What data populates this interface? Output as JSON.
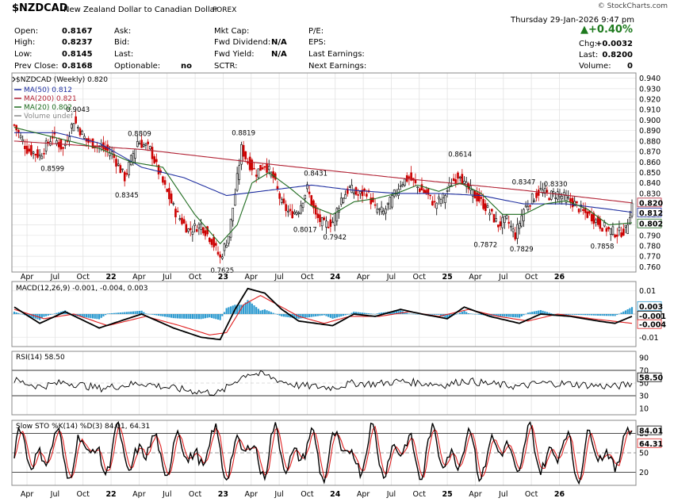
{
  "header": {
    "symbol": "$NZDCAD",
    "description": "New Zealand Dollar to Canadian Dollar",
    "exchange": "FOREX",
    "copyright": "© StockCharts.com",
    "date": "Thursday  29-Jan-2026  9:47 pm",
    "change_pct": "+0.40%",
    "chg_label": "Chg:",
    "chg_value": "+0.0032",
    "last_label": "Last:",
    "last_value": "0.8200",
    "volume_label": "Volume:",
    "volume_value": "0",
    "open_label": "Open:",
    "open_value": "0.8167",
    "high_label": "High:",
    "high_value": "0.8237",
    "low_label": "Low:",
    "low_value": "0.8145",
    "prev_label": "Prev Close:",
    "prev_value": "0.8168",
    "ask_label": "Ask:",
    "bid_label": "Bid:",
    "lastc_label": "Last:",
    "optionable_label": "Optionable:",
    "optionable_value": "no",
    "mktcap_label": "Mkt Cap:",
    "fwddiv_label": "Fwd Dividend:",
    "fwddiv_value": "N/A",
    "fwdyield_label": "Fwd Yield:",
    "fwdyield_value": "N/A",
    "sctr_label": "SCTR:",
    "pe_label": "P/E:",
    "eps_label": "EPS:",
    "lastearn_label": "Last Earnings:",
    "nextearn_label": "Next Earnings:"
  },
  "colors": {
    "up": "#000000",
    "down": "#cc0000",
    "ma50": "#1f2fa0",
    "ma200": "#b22234",
    "ma20": "#1e6b1e",
    "macd_hist": "#2e9bd0",
    "signal": "#e02020",
    "positive": "#1e7a1e"
  },
  "chart_data": [
    {
      "type": "candlestick",
      "title": "$NZDCAD (Weekly) 0.820",
      "legend": [
        {
          "name": "MA(50) 0.812",
          "color": "#1f2fa0"
        },
        {
          "name": "MA(200) 0.821",
          "color": "#b22234"
        },
        {
          "name": "MA(20) 0.802",
          "color": "#1e6b1e"
        },
        {
          "name": "Volume undef",
          "color": "#888888"
        }
      ],
      "ylim": [
        0.755,
        0.945
      ],
      "yticks": [
        "0.940",
        "0.930",
        "0.920",
        "0.910",
        "0.900",
        "0.890",
        "0.880",
        "0.870",
        "0.860",
        "0.850",
        "0.840",
        "0.830",
        "0.820",
        "0.810",
        "0.800",
        "0.790",
        "0.780",
        "0.770",
        "0.760"
      ],
      "right_labels": [
        "0.820",
        "0.812",
        "0.802"
      ],
      "x_labels": [
        "Apr",
        "Jul",
        "Oct",
        "22",
        "Apr",
        "Jul",
        "Oct",
        "23",
        "Apr",
        "Jul",
        "Oct",
        "24",
        "Apr",
        "Jul",
        "Oct",
        "25",
        "Apr",
        "Jul",
        "Oct",
        "26"
      ],
      "close_path": [
        [
          0,
          0.895
        ],
        [
          6,
          0.872
        ],
        [
          12,
          0.866
        ],
        [
          18,
          0.885
        ],
        [
          23,
          0.872
        ],
        [
          28,
          0.9
        ],
        [
          34,
          0.88
        ],
        [
          40,
          0.875
        ],
        [
          46,
          0.868
        ],
        [
          52,
          0.845
        ],
        [
          58,
          0.88
        ],
        [
          64,
          0.872
        ],
        [
          70,
          0.84
        ],
        [
          76,
          0.812
        ],
        [
          82,
          0.795
        ],
        [
          88,
          0.8
        ],
        [
          93,
          0.785
        ],
        [
          97,
          0.768
        ],
        [
          101,
          0.79
        ],
        [
          104,
          0.83
        ],
        [
          107,
          0.873
        ],
        [
          110,
          0.86
        ],
        [
          114,
          0.85
        ],
        [
          118,
          0.858
        ],
        [
          122,
          0.845
        ],
        [
          126,
          0.82
        ],
        [
          130,
          0.81
        ],
        [
          134,
          0.815
        ],
        [
          138,
          0.835
        ],
        [
          142,
          0.808
        ],
        [
          146,
          0.8
        ],
        [
          150,
          0.803
        ],
        [
          154,
          0.825
        ],
        [
          158,
          0.835
        ],
        [
          162,
          0.828
        ],
        [
          166,
          0.832
        ],
        [
          170,
          0.815
        ],
        [
          174,
          0.812
        ],
        [
          178,
          0.825
        ],
        [
          182,
          0.84
        ],
        [
          186,
          0.845
        ],
        [
          190,
          0.836
        ],
        [
          194,
          0.83
        ],
        [
          198,
          0.82
        ],
        [
          202,
          0.826
        ],
        [
          206,
          0.84
        ],
        [
          210,
          0.85
        ],
        [
          212,
          0.838
        ],
        [
          216,
          0.83
        ],
        [
          220,
          0.822
        ],
        [
          224,
          0.812
        ],
        [
          228,
          0.8
        ],
        [
          232,
          0.805
        ],
        [
          236,
          0.79
        ],
        [
          240,
          0.815
        ],
        [
          244,
          0.825
        ],
        [
          248,
          0.833
        ],
        [
          252,
          0.828
        ],
        [
          256,
          0.83
        ],
        [
          260,
          0.825
        ],
        [
          264,
          0.82
        ],
        [
          268,
          0.812
        ],
        [
          272,
          0.808
        ],
        [
          276,
          0.8
        ],
        [
          280,
          0.795
        ],
        [
          284,
          0.792
        ],
        [
          288,
          0.795
        ],
        [
          291,
          0.82
        ]
      ],
      "ma200_path": [
        [
          0,
          0.88
        ],
        [
          60,
          0.872
        ],
        [
          120,
          0.858
        ],
        [
          180,
          0.845
        ],
        [
          240,
          0.833
        ],
        [
          291,
          0.821
        ]
      ],
      "ma50_path": [
        [
          0,
          0.888
        ],
        [
          20,
          0.888
        ],
        [
          40,
          0.878
        ],
        [
          60,
          0.855
        ],
        [
          80,
          0.845
        ],
        [
          100,
          0.828
        ],
        [
          120,
          0.833
        ],
        [
          140,
          0.838
        ],
        [
          160,
          0.833
        ],
        [
          180,
          0.83
        ],
        [
          200,
          0.83
        ],
        [
          220,
          0.828
        ],
        [
          240,
          0.82
        ],
        [
          260,
          0.82
        ],
        [
          280,
          0.815
        ],
        [
          291,
          0.812
        ]
      ],
      "ma20_path": [
        [
          0,
          0.893
        ],
        [
          20,
          0.883
        ],
        [
          40,
          0.873
        ],
        [
          55,
          0.86
        ],
        [
          70,
          0.855
        ],
        [
          85,
          0.81
        ],
        [
          97,
          0.782
        ],
        [
          105,
          0.8
        ],
        [
          112,
          0.84
        ],
        [
          120,
          0.85
        ],
        [
          130,
          0.835
        ],
        [
          140,
          0.818
        ],
        [
          150,
          0.81
        ],
        [
          160,
          0.822
        ],
        [
          170,
          0.825
        ],
        [
          180,
          0.83
        ],
        [
          190,
          0.838
        ],
        [
          200,
          0.832
        ],
        [
          210,
          0.84
        ],
        [
          220,
          0.83
        ],
        [
          230,
          0.81
        ],
        [
          240,
          0.81
        ],
        [
          250,
          0.82
        ],
        [
          260,
          0.823
        ],
        [
          270,
          0.815
        ],
        [
          280,
          0.8
        ],
        [
          291,
          0.802
        ]
      ],
      "annotations": [
        {
          "x": 30,
          "y": 0.9043,
          "text": "0.9043",
          "pos": "above"
        },
        {
          "x": 59,
          "y": 0.8809,
          "text": "0.8809",
          "pos": "above"
        },
        {
          "x": 108,
          "y": 0.8819,
          "text": "0.8819",
          "pos": "above"
        },
        {
          "x": 18,
          "y": 0.8599,
          "text": "0.8599",
          "pos": "below"
        },
        {
          "x": 53,
          "y": 0.8345,
          "text": "0.8345",
          "pos": "below"
        },
        {
          "x": 98,
          "y": 0.7625,
          "text": "0.7625",
          "pos": "below"
        },
        {
          "x": 142,
          "y": 0.8431,
          "text": "0.8431",
          "pos": "above"
        },
        {
          "x": 137,
          "y": 0.8017,
          "text": "0.8017",
          "pos": "below"
        },
        {
          "x": 151,
          "y": 0.7942,
          "text": "0.7942",
          "pos": "below"
        },
        {
          "x": 210,
          "y": 0.8614,
          "text": "0.8614",
          "pos": "above"
        },
        {
          "x": 222,
          "y": 0.7872,
          "text": "0.7872",
          "pos": "below"
        },
        {
          "x": 239,
          "y": 0.7829,
          "text": "0.7829",
          "pos": "below"
        },
        {
          "x": 240,
          "y": 0.8347,
          "text": "0.8347",
          "pos": "above"
        },
        {
          "x": 255,
          "y": 0.833,
          "text": "0.8330",
          "pos": "above"
        },
        {
          "x": 277,
          "y": 0.7858,
          "text": "0.7858",
          "pos": "below"
        }
      ]
    },
    {
      "type": "macd",
      "title": "MACD(12,26,9) -0.001, -0.004, 0.003",
      "legend": [
        {
          "name": "MACD(12,26,9)",
          "value": "-0.001",
          "color": "#000000"
        },
        {
          "name": "signal",
          "value": "-0.004",
          "color": "#e02020"
        },
        {
          "name": "histogram",
          "value": "0.003",
          "color": "#2e9bd0"
        }
      ],
      "ylim": [
        -0.014,
        0.014
      ],
      "yticks": [
        "0.01",
        "-0.01"
      ],
      "right_labels": [
        "0.003",
        "-0.001",
        "-0.004"
      ],
      "macd_path": [
        [
          0,
          0.003
        ],
        [
          12,
          -0.004
        ],
        [
          24,
          0.001
        ],
        [
          40,
          -0.006
        ],
        [
          60,
          0.0
        ],
        [
          75,
          -0.006
        ],
        [
          88,
          -0.01
        ],
        [
          97,
          -0.011
        ],
        [
          104,
          0.002
        ],
        [
          110,
          0.011
        ],
        [
          118,
          0.009
        ],
        [
          126,
          0.002
        ],
        [
          134,
          -0.003
        ],
        [
          142,
          -0.004
        ],
        [
          150,
          -0.005
        ],
        [
          160,
          0.0
        ],
        [
          170,
          -0.001
        ],
        [
          182,
          0.002
        ],
        [
          192,
          0.0
        ],
        [
          204,
          -0.002
        ],
        [
          212,
          0.003
        ],
        [
          224,
          -0.001
        ],
        [
          238,
          -0.004
        ],
        [
          248,
          0.0
        ],
        [
          262,
          -0.001
        ],
        [
          275,
          -0.003
        ],
        [
          283,
          -0.004
        ],
        [
          291,
          -0.001
        ]
      ],
      "signal_path": [
        [
          0,
          0.002
        ],
        [
          14,
          -0.002
        ],
        [
          28,
          0.0
        ],
        [
          44,
          -0.005
        ],
        [
          62,
          -0.001
        ],
        [
          78,
          -0.005
        ],
        [
          92,
          -0.009
        ],
        [
          100,
          -0.008
        ],
        [
          108,
          0.004
        ],
        [
          116,
          0.008
        ],
        [
          124,
          0.004
        ],
        [
          134,
          -0.001
        ],
        [
          146,
          -0.004
        ],
        [
          158,
          -0.001
        ],
        [
          172,
          -0.001
        ],
        [
          186,
          0.001
        ],
        [
          200,
          -0.001
        ],
        [
          214,
          0.002
        ],
        [
          228,
          -0.001
        ],
        [
          242,
          -0.003
        ],
        [
          256,
          0.0
        ],
        [
          272,
          -0.002
        ],
        [
          291,
          -0.004
        ]
      ]
    },
    {
      "type": "line",
      "title": "RSI(14) 58.50",
      "ylim": [
        0,
        100
      ],
      "yticks": [
        "90",
        "70",
        "50",
        "30",
        "10"
      ],
      "right_labels": [
        "58.50"
      ],
      "reference_lines": [
        70,
        30
      ]
    },
    {
      "type": "stochastic",
      "title": "Slow STO %K(14) %D(3) 84.01, 64.31",
      "legend": [
        {
          "name": "%K(14)",
          "value": "84.01",
          "color": "#000000"
        },
        {
          "name": "%D(3)",
          "value": "64.31",
          "color": "#e02020"
        }
      ],
      "ylim": [
        0,
        100
      ],
      "yticks": [
        "80",
        "50",
        "20"
      ],
      "right_labels": [
        "84.01",
        "64.31"
      ],
      "reference_lines": [
        80,
        50,
        20
      ],
      "x_labels": [
        "Apr",
        "Jul",
        "Oct",
        "22",
        "Apr",
        "Jul",
        "Oct",
        "23",
        "Apr",
        "Jul",
        "Oct",
        "24",
        "Apr",
        "Jul",
        "Oct",
        "25",
        "Apr",
        "Jul",
        "Oct",
        "26"
      ]
    }
  ]
}
